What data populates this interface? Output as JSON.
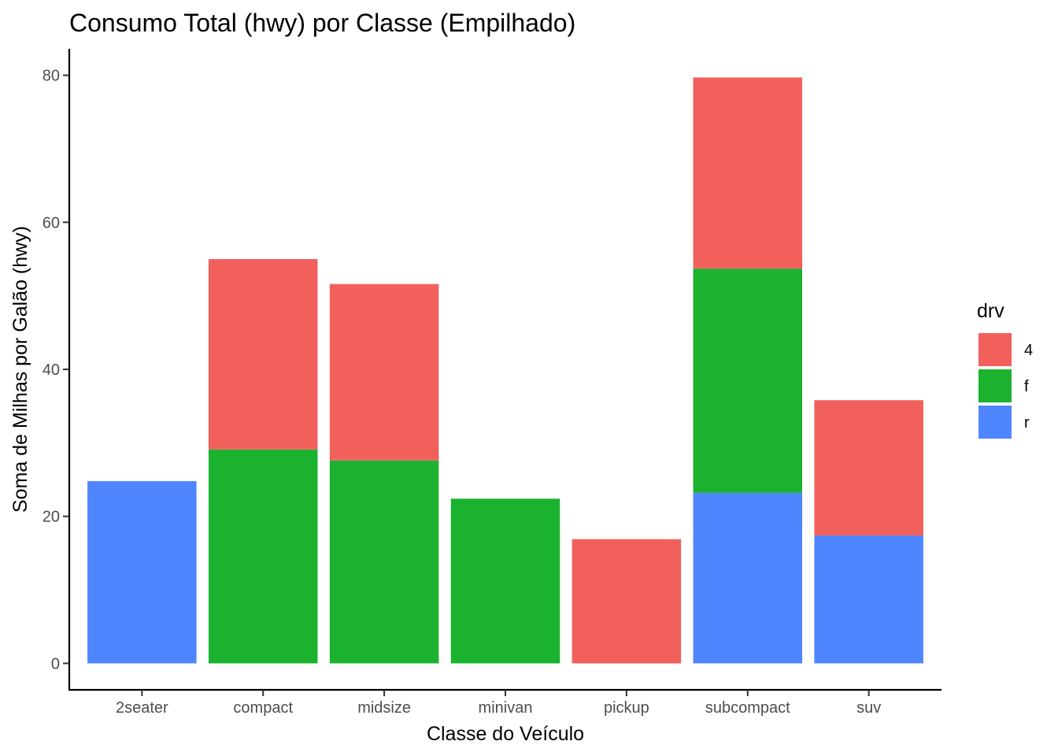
{
  "chart_data": {
    "type": "bar",
    "stacked": true,
    "title": "Consumo Total (hwy) por Classe (Empilhado)",
    "xlabel": "Classe do Veículo",
    "ylabel": "Soma de Milhas por Galão (hwy)",
    "ylim": [
      -3.6,
      83.6
    ],
    "yticks": [
      0,
      20,
      40,
      60,
      80
    ],
    "categories": [
      "2seater",
      "compact",
      "midsize",
      "minivan",
      "pickup",
      "subcompact",
      "suv"
    ],
    "series": [
      {
        "name": "r",
        "color": "#4f86ff",
        "values": [
          24.8,
          0,
          0,
          0,
          0,
          23.2,
          17.4
        ]
      },
      {
        "name": "f",
        "color": "#1ab22f",
        "values": [
          0,
          29.1,
          27.6,
          22.4,
          0,
          30.5,
          0
        ]
      },
      {
        "name": "4",
        "color": "#f2605c",
        "values": [
          0,
          25.9,
          24.0,
          0,
          16.9,
          26.0,
          18.4
        ]
      }
    ],
    "legend": {
      "title": "drv",
      "position": "right",
      "entries": [
        {
          "label": "4",
          "color": "#f2605c"
        },
        {
          "label": "f",
          "color": "#1ab22f"
        },
        {
          "label": "r",
          "color": "#4f86ff"
        }
      ]
    },
    "grid": false
  }
}
